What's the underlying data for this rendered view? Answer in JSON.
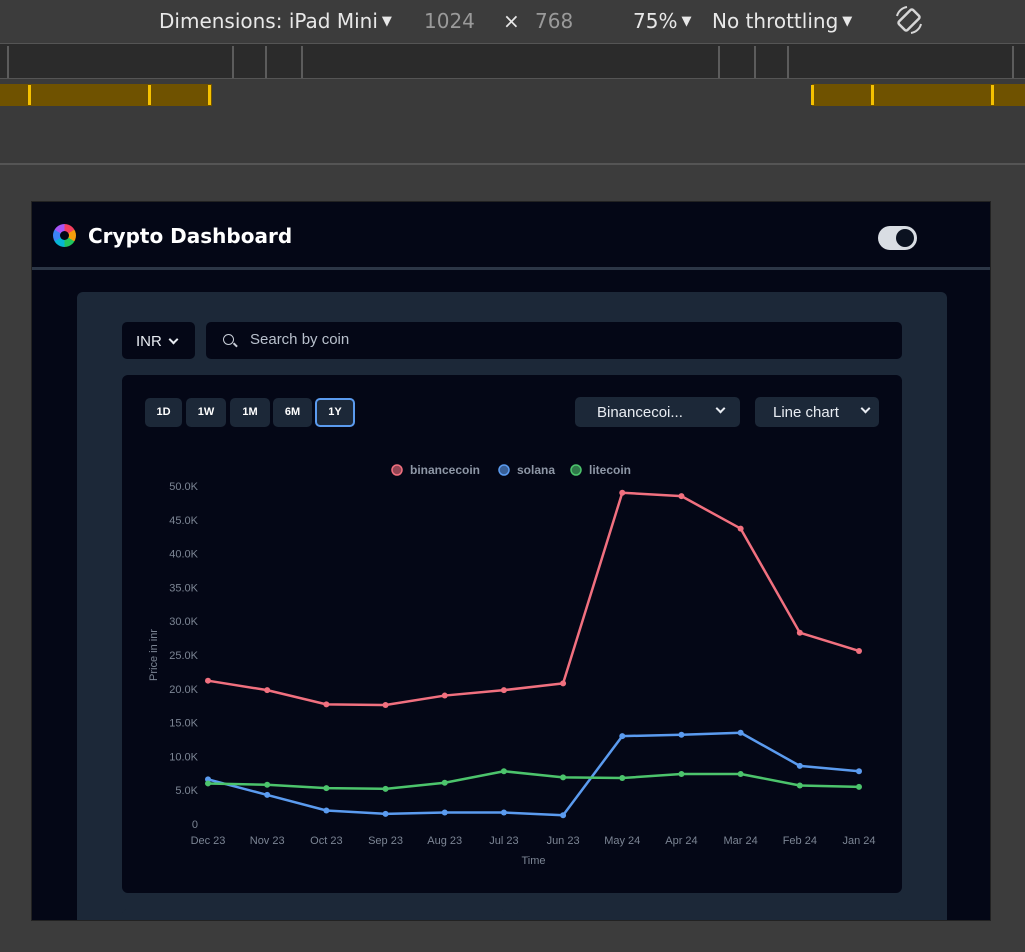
{
  "devtools": {
    "dimensions_label": "Dimensions: iPad Mini",
    "width": "1024",
    "times": "×",
    "height": "768",
    "zoom": "75%",
    "throttling": "No throttling"
  },
  "app": {
    "title": "Crypto Dashboard",
    "theme_toggle_on": true,
    "currency": "INR",
    "search_placeholder": "Search by coin",
    "ranges": [
      "1D",
      "1W",
      "1M",
      "6M",
      "1Y"
    ],
    "active_range": "1Y",
    "coin_select": "Binancecoi...",
    "chart_type_select": "Line chart"
  },
  "colors": {
    "binancecoin": "#f1707f",
    "solana": "#5b9bef",
    "litecoin": "#4cc46c",
    "accent": "#5b9bef"
  },
  "chart_data": {
    "type": "line",
    "x": [
      "Dec 23",
      "Nov 23",
      "Oct 23",
      "Sep 23",
      "Aug 23",
      "Jul 23",
      "Jun 23",
      "May 24",
      "Apr 24",
      "Mar 24",
      "Feb 24",
      "Jan 24"
    ],
    "series": [
      {
        "name": "binancecoin",
        "values": [
          21200,
          19800,
          17700,
          17600,
          19000,
          19800,
          20800,
          49000,
          48500,
          43700,
          28300,
          25600
        ]
      },
      {
        "name": "solana",
        "values": [
          6600,
          4300,
          2000,
          1500,
          1700,
          1700,
          1300,
          13000,
          13200,
          13500,
          8600,
          7800
        ]
      },
      {
        "name": "litecoin",
        "values": [
          6000,
          5800,
          5300,
          5200,
          6100,
          7800,
          6900,
          6800,
          7400,
          7400,
          5700,
          5500
        ]
      }
    ],
    "xlabel": "Time",
    "ylabel": "Price in inr",
    "ylim": [
      0,
      50000
    ],
    "yticks": [
      "0",
      "5.0K",
      "10.0K",
      "15.0K",
      "20.0K",
      "25.0K",
      "30.0K",
      "35.0K",
      "40.0K",
      "45.0K",
      "50.0K"
    ],
    "legend": "top-center",
    "grid": false
  }
}
